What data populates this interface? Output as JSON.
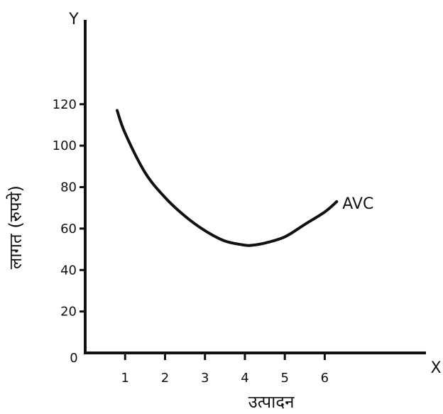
{
  "chart_data": {
    "type": "line",
    "x_axis_letter": "X",
    "y_axis_letter": "Y",
    "xlabel": "उत्पादन",
    "ylabel": "लागत (रुपये)",
    "origin_label": "0",
    "x_ticks": [
      "1",
      "2",
      "3",
      "4",
      "5",
      "6"
    ],
    "y_ticks": [
      "20",
      "40",
      "60",
      "80",
      "100",
      "120"
    ],
    "xlim": [
      0,
      8.5
    ],
    "ylim": [
      0,
      160
    ],
    "grid": false,
    "colors": {
      "axis": "#111111",
      "curve": "#111111",
      "background": "#ffffff"
    },
    "series": [
      {
        "name": "AVC",
        "x": [
          0.8,
          1.0,
          1.5,
          2.0,
          2.5,
          3.0,
          3.5,
          4.0,
          4.2,
          4.5,
          5.0,
          5.5,
          6.0,
          6.3
        ],
        "y": [
          117,
          106,
          87,
          75,
          66,
          59,
          54,
          52,
          52,
          53,
          56,
          62,
          68,
          73
        ]
      }
    ]
  }
}
